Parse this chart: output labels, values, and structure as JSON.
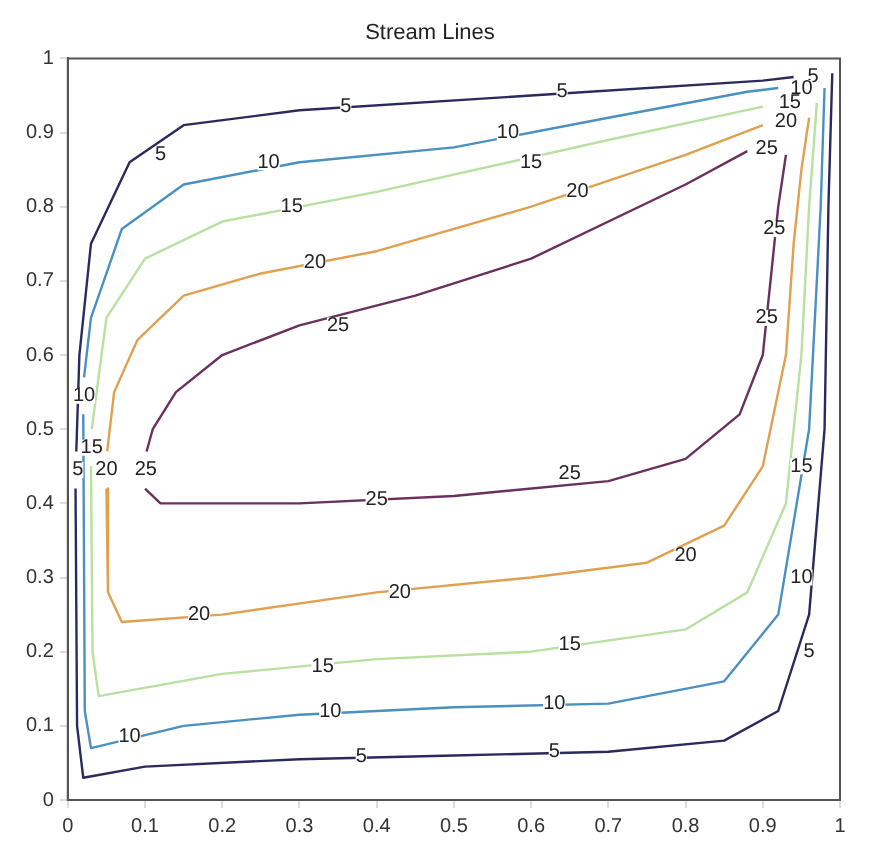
{
  "chart_data": {
    "type": "line",
    "title": "Stream Lines",
    "xlim": [
      0,
      1
    ],
    "ylim": [
      0,
      1
    ],
    "xticks": [
      0,
      0.1,
      0.2,
      0.3,
      0.4,
      0.5,
      0.6,
      0.7,
      0.8,
      0.9,
      1
    ],
    "yticks": [
      0,
      0.1,
      0.2,
      0.3,
      0.4,
      0.5,
      0.6,
      0.7,
      0.8,
      0.9,
      1
    ],
    "grid": false,
    "legend": false,
    "marker": "none",
    "line_style": "solid",
    "series": [
      {
        "color": "#2b2a5e",
        "x": [
          0.01,
          0.012,
          0.02,
          0.1,
          0.3,
          0.5,
          0.7,
          0.85,
          0.92,
          0.96,
          0.98,
          0.985,
          0.99
        ],
        "values": [
          0.42,
          0.1,
          0.03,
          0.045,
          0.055,
          0.06,
          0.065,
          0.08,
          0.12,
          0.25,
          0.5,
          0.8,
          0.98
        ]
      },
      {
        "color": "#2b2a5e",
        "x": [
          0.011,
          0.015,
          0.03,
          0.08,
          0.15,
          0.3,
          0.6,
          0.9,
          0.94
        ],
        "values": [
          0.47,
          0.6,
          0.75,
          0.86,
          0.91,
          0.93,
          0.95,
          0.97,
          0.975
        ]
      },
      {
        "color": "#4a90c0",
        "x": [
          0.02,
          0.022,
          0.03,
          0.15,
          0.3,
          0.5,
          0.7,
          0.85,
          0.92,
          0.96,
          0.975,
          0.98
        ],
        "values": [
          0.52,
          0.12,
          0.07,
          0.1,
          0.115,
          0.125,
          0.13,
          0.16,
          0.25,
          0.5,
          0.8,
          0.96
        ]
      },
      {
        "color": "#4a90c0",
        "x": [
          0.021,
          0.03,
          0.07,
          0.15,
          0.3,
          0.5,
          0.7,
          0.88,
          0.92
        ],
        "values": [
          0.57,
          0.65,
          0.77,
          0.83,
          0.86,
          0.88,
          0.92,
          0.955,
          0.96
        ]
      },
      {
        "color": "#b8e0a0",
        "x": [
          0.03,
          0.032,
          0.04,
          0.2,
          0.4,
          0.6,
          0.8,
          0.88,
          0.93,
          0.95,
          0.96,
          0.97
        ],
        "values": [
          0.45,
          0.2,
          0.14,
          0.17,
          0.19,
          0.2,
          0.23,
          0.28,
          0.4,
          0.6,
          0.8,
          0.94
        ]
      },
      {
        "color": "#b8e0a0",
        "x": [
          0.031,
          0.05,
          0.1,
          0.2,
          0.4,
          0.7,
          0.9
        ],
        "values": [
          0.5,
          0.65,
          0.73,
          0.78,
          0.82,
          0.89,
          0.935
        ]
      },
      {
        "color": "#e0a050",
        "x": [
          0.05,
          0.052,
          0.07,
          0.2,
          0.4,
          0.6,
          0.75,
          0.85,
          0.9,
          0.93,
          0.94,
          0.95,
          0.96
        ],
        "values": [
          0.42,
          0.28,
          0.24,
          0.25,
          0.28,
          0.3,
          0.32,
          0.37,
          0.45,
          0.6,
          0.75,
          0.85,
          0.92
        ]
      },
      {
        "color": "#e0a050",
        "x": [
          0.051,
          0.06,
          0.09,
          0.15,
          0.25,
          0.4,
          0.6,
          0.8,
          0.9
        ],
        "values": [
          0.47,
          0.55,
          0.62,
          0.68,
          0.71,
          0.74,
          0.8,
          0.87,
          0.91
        ]
      },
      {
        "color": "#6a3060",
        "x": [
          0.1,
          0.12,
          0.3,
          0.5,
          0.7,
          0.8,
          0.87,
          0.9,
          0.91,
          0.92,
          0.93
        ],
        "values": [
          0.42,
          0.4,
          0.4,
          0.41,
          0.43,
          0.46,
          0.52,
          0.6,
          0.7,
          0.8,
          0.87
        ]
      },
      {
        "color": "#6a3060",
        "x": [
          0.102,
          0.11,
          0.14,
          0.2,
          0.3,
          0.45,
          0.6,
          0.8,
          0.88
        ],
        "values": [
          0.47,
          0.5,
          0.55,
          0.6,
          0.64,
          0.68,
          0.73,
          0.83,
          0.875
        ]
      }
    ],
    "annotations": [
      {
        "text": "5",
        "x": 0.12,
        "y": 0.87
      },
      {
        "text": "5",
        "x": 0.36,
        "y": 0.935
      },
      {
        "text": "5",
        "x": 0.64,
        "y": 0.955
      },
      {
        "text": "5",
        "x": 0.38,
        "y": 0.058
      },
      {
        "text": "5",
        "x": 0.63,
        "y": 0.065
      },
      {
        "text": "5",
        "x": 0.96,
        "y": 0.2
      },
      {
        "text": "5",
        "x": 0.013,
        "y": 0.445
      },
      {
        "text": "5",
        "x": 0.965,
        "y": 0.975
      },
      {
        "text": "10",
        "x": 0.26,
        "y": 0.86
      },
      {
        "text": "10",
        "x": 0.57,
        "y": 0.9
      },
      {
        "text": "10",
        "x": 0.95,
        "y": 0.96
      },
      {
        "text": "10",
        "x": 0.08,
        "y": 0.085
      },
      {
        "text": "10",
        "x": 0.34,
        "y": 0.12
      },
      {
        "text": "10",
        "x": 0.63,
        "y": 0.13
      },
      {
        "text": "10",
        "x": 0.95,
        "y": 0.3
      },
      {
        "text": "10",
        "x": 0.021,
        "y": 0.545
      },
      {
        "text": "15",
        "x": 0.29,
        "y": 0.8
      },
      {
        "text": "15",
        "x": 0.6,
        "y": 0.86
      },
      {
        "text": "15",
        "x": 0.33,
        "y": 0.18
      },
      {
        "text": "15",
        "x": 0.65,
        "y": 0.21
      },
      {
        "text": "15",
        "x": 0.95,
        "y": 0.45
      },
      {
        "text": "15",
        "x": 0.031,
        "y": 0.475
      },
      {
        "text": "15",
        "x": 0.935,
        "y": 0.94
      },
      {
        "text": "20",
        "x": 0.32,
        "y": 0.725
      },
      {
        "text": "20",
        "x": 0.66,
        "y": 0.82
      },
      {
        "text": "20",
        "x": 0.93,
        "y": 0.915
      },
      {
        "text": "20",
        "x": 0.17,
        "y": 0.25
      },
      {
        "text": "20",
        "x": 0.43,
        "y": 0.28
      },
      {
        "text": "20",
        "x": 0.8,
        "y": 0.33
      },
      {
        "text": "20",
        "x": 0.05,
        "y": 0.445
      },
      {
        "text": "25",
        "x": 0.35,
        "y": 0.64
      },
      {
        "text": "25",
        "x": 0.915,
        "y": 0.77
      },
      {
        "text": "25",
        "x": 0.4,
        "y": 0.405
      },
      {
        "text": "25",
        "x": 0.65,
        "y": 0.44
      },
      {
        "text": "25",
        "x": 0.101,
        "y": 0.445
      },
      {
        "text": "25",
        "x": 0.905,
        "y": 0.65
      },
      {
        "text": "25",
        "x": 0.905,
        "y": 0.878
      }
    ]
  }
}
